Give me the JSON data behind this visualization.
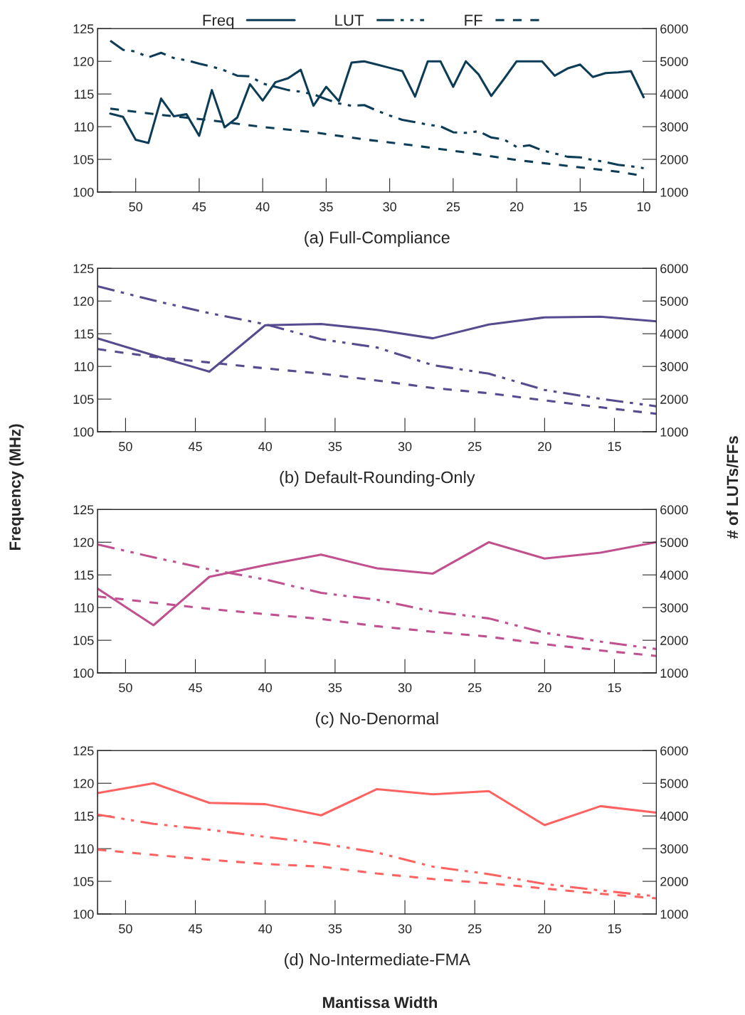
{
  "chart_data": [
    {
      "type": "line",
      "title": "(a) Full-Compliance",
      "legend": "top",
      "grid": false,
      "xlim": [
        53,
        9
      ],
      "xticks": [
        50,
        45,
        40,
        35,
        30,
        25,
        20,
        15,
        10
      ],
      "ylim": [
        100,
        125
      ],
      "yticks": [
        100,
        105,
        110,
        115,
        120,
        125
      ],
      "y2lim": [
        1000,
        6000
      ],
      "y2ticks": [
        1000,
        2000,
        3000,
        4000,
        5000,
        6000
      ],
      "series": [
        {
          "name": "Freq",
          "color": "#0d3d56",
          "line_style": "solid",
          "x": [
            52,
            51,
            50,
            49,
            48,
            47,
            46,
            45,
            44,
            43,
            42,
            41,
            40,
            39,
            38,
            37,
            36,
            35,
            34,
            33,
            32,
            31,
            30,
            29,
            28,
            27,
            26,
            25,
            24,
            23,
            22,
            21,
            20,
            19,
            18,
            17,
            16,
            15,
            14,
            13,
            12,
            11,
            10
          ],
          "values": [
            112.0,
            111.5,
            108.0,
            107.5,
            114.3,
            111.6,
            111.9,
            108.6,
            115.6,
            109.9,
            111.4,
            116.5,
            114.0,
            116.8,
            117.4,
            118.7,
            113.2,
            116.1,
            113.9,
            119.8,
            120.0,
            119.5,
            119.0,
            118.5,
            114.6,
            120.0,
            120.0,
            116.1,
            120.0,
            118.0,
            114.7,
            117.3,
            120.0,
            120.0,
            120.0,
            117.8,
            118.9,
            119.5,
            117.6,
            118.2,
            118.3,
            118.5,
            114.5
          ]
        },
        {
          "name": "LUT",
          "color": "#0d3d56",
          "line_style": "dashdot",
          "axis": "y2",
          "x": [
            52,
            51,
            50,
            49,
            48,
            47,
            46,
            45,
            44,
            43,
            42,
            41,
            40,
            39,
            38,
            37,
            36,
            35,
            34,
            33,
            32,
            31,
            30,
            29,
            28,
            27,
            26,
            25,
            24,
            23,
            22,
            21,
            20,
            19,
            18,
            17,
            16,
            15,
            14,
            13,
            12,
            11,
            10
          ],
          "values": [
            5630,
            5350,
            5300,
            5120,
            5260,
            5100,
            5030,
            4930,
            4840,
            4720,
            4560,
            4540,
            4320,
            4220,
            4120,
            4070,
            3990,
            3840,
            3710,
            3640,
            3660,
            3490,
            3340,
            3210,
            3140,
            3060,
            3010,
            2830,
            2810,
            2860,
            2670,
            2610,
            2380,
            2430,
            2280,
            2180,
            2080,
            2060,
            1980,
            1920,
            1830,
            1790,
            1730
          ]
        },
        {
          "name": "FF",
          "color": "#0d3d56",
          "line_style": "dashed",
          "axis": "y2",
          "x": [
            52,
            48,
            44,
            40,
            36,
            32,
            28,
            24,
            20,
            16,
            12,
            10
          ],
          "values": [
            3550,
            3360,
            3190,
            2990,
            2830,
            2610,
            2420,
            2210,
            1980,
            1800,
            1620,
            1490
          ]
        }
      ]
    },
    {
      "type": "line",
      "title": "(b) Default-Rounding-Only",
      "ylabel": "Frequency (MHz)",
      "y2label": "# of LUTs/FFs",
      "grid": false,
      "xlim": [
        52,
        12
      ],
      "xticks": [
        50,
        45,
        40,
        35,
        30,
        25,
        20,
        15
      ],
      "ylim": [
        100,
        125
      ],
      "yticks": [
        100,
        105,
        110,
        115,
        120,
        125
      ],
      "y2lim": [
        1000,
        6000
      ],
      "y2ticks": [
        1000,
        2000,
        3000,
        4000,
        5000,
        6000
      ],
      "x": [
        52,
        48,
        44,
        40,
        36,
        32,
        28,
        24,
        20,
        16,
        12
      ],
      "series": [
        {
          "color": "#574a8e",
          "line_style": "solid",
          "values": [
            114.3,
            111.7,
            109.2,
            116.3,
            116.5,
            115.6,
            114.3,
            116.4,
            117.5,
            117.6,
            116.9
          ]
        },
        {
          "color": "#574a8e",
          "line_style": "dashdot",
          "axis": "y2",
          "values": [
            5450,
            5020,
            4630,
            4290,
            3830,
            3580,
            3040,
            2780,
            2280,
            2010,
            1780
          ]
        },
        {
          "color": "#574a8e",
          "line_style": "dashed",
          "axis": "y2",
          "values": [
            3530,
            3290,
            3120,
            2940,
            2780,
            2570,
            2340,
            2180,
            1960,
            1750,
            1550
          ]
        }
      ]
    },
    {
      "type": "line",
      "title": "(c) No-Denormal",
      "grid": false,
      "xlim": [
        52,
        12
      ],
      "xticks": [
        50,
        45,
        40,
        35,
        30,
        25,
        20,
        15
      ],
      "ylim": [
        100,
        125
      ],
      "yticks": [
        100,
        105,
        110,
        115,
        120,
        125
      ],
      "y2lim": [
        1000,
        6000
      ],
      "y2ticks": [
        1000,
        2000,
        3000,
        4000,
        5000,
        6000
      ],
      "x": [
        52,
        48,
        44,
        40,
        36,
        32,
        28,
        24,
        20,
        16,
        12
      ],
      "series": [
        {
          "color": "#c1508f",
          "line_style": "solid",
          "values": [
            112.9,
            107.3,
            114.7,
            116.5,
            118.1,
            116.0,
            115.2,
            120.0,
            117.5,
            118.4,
            120.0
          ]
        },
        {
          "color": "#c1508f",
          "line_style": "dashdot",
          "axis": "y2",
          "values": [
            4930,
            4540,
            4170,
            3860,
            3450,
            3240,
            2880,
            2670,
            2230,
            1960,
            1730
          ]
        },
        {
          "color": "#c1508f",
          "line_style": "dashed",
          "axis": "y2",
          "values": [
            3340,
            3150,
            2960,
            2800,
            2650,
            2430,
            2260,
            2110,
            1880,
            1690,
            1520
          ]
        }
      ]
    },
    {
      "type": "line",
      "title": "(d) No-Intermediate-FMA",
      "xlabel": "Mantissa Width",
      "grid": false,
      "xlim": [
        52,
        12
      ],
      "xticks": [
        50,
        45,
        40,
        35,
        30,
        25,
        20,
        15
      ],
      "ylim": [
        100,
        125
      ],
      "yticks": [
        100,
        105,
        110,
        115,
        120,
        125
      ],
      "y2lim": [
        1000,
        6000
      ],
      "y2ticks": [
        1000,
        2000,
        3000,
        4000,
        5000,
        6000
      ],
      "x": [
        52,
        48,
        44,
        40,
        36,
        32,
        28,
        24,
        20,
        16,
        12
      ],
      "series": [
        {
          "color": "#ff6361",
          "line_style": "solid",
          "values": [
            118.5,
            120.0,
            117.0,
            116.8,
            115.1,
            119.1,
            118.3,
            118.8,
            113.6,
            116.5,
            115.5
          ]
        },
        {
          "color": "#ff6361",
          "line_style": "dashdot",
          "axis": "y2",
          "values": [
            4040,
            3760,
            3580,
            3360,
            3160,
            2880,
            2450,
            2220,
            1920,
            1720,
            1540
          ]
        },
        {
          "color": "#ff6361",
          "line_style": "dashed",
          "axis": "y2",
          "values": [
            2970,
            2810,
            2660,
            2530,
            2450,
            2240,
            2070,
            1940,
            1780,
            1620,
            1480
          ]
        }
      ]
    }
  ]
}
